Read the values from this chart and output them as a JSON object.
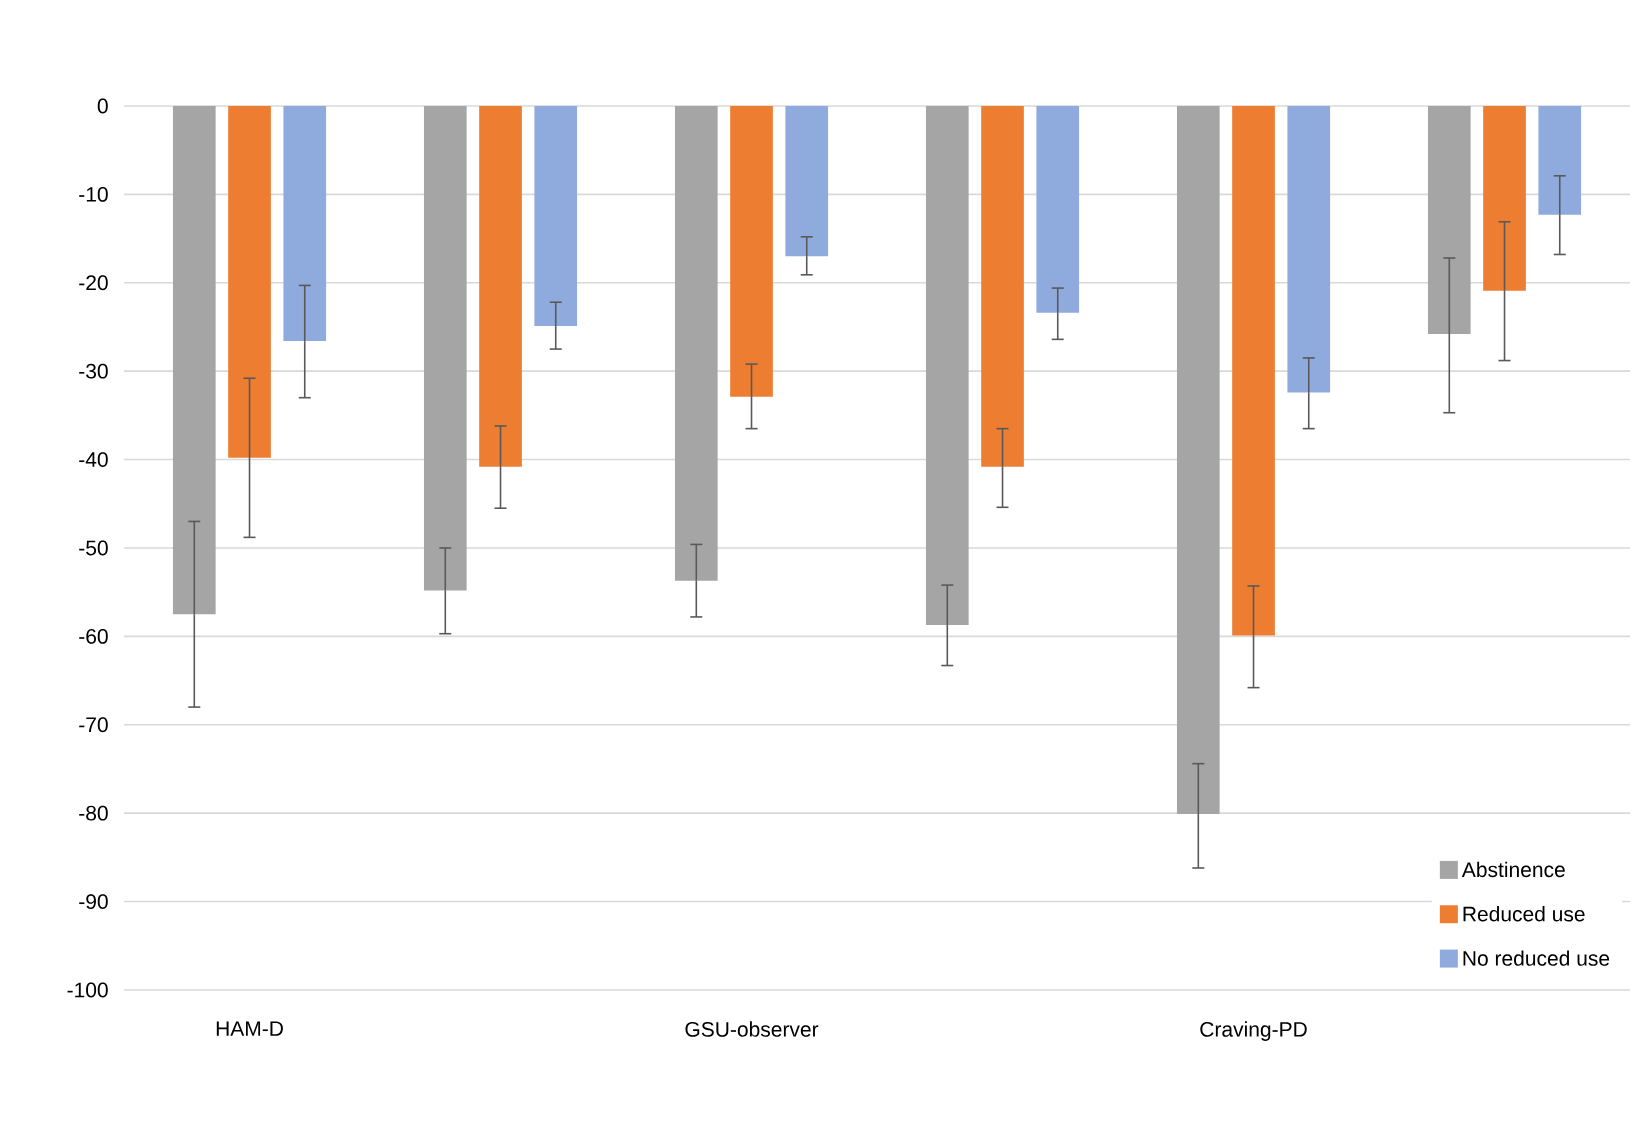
{
  "chart_data": {
    "type": "bar",
    "categories": [
      "HAM-D",
      null,
      "GSU-observer",
      null,
      "Craving-PD",
      null
    ],
    "series": [
      {
        "name": "Abstinence",
        "color": "#a5a5a5",
        "values": [
          -57.5,
          -54.8,
          -53.7,
          -58.7,
          -80.1,
          -25.8
        ],
        "errors": [
          [
            -68.0,
            -47.0
          ],
          [
            -59.7,
            -50.0
          ],
          [
            -57.8,
            -49.6
          ],
          [
            -63.3,
            -54.2
          ],
          [
            -86.2,
            -74.4
          ],
          [
            -34.7,
            -17.2
          ]
        ]
      },
      {
        "name": "Reduced use",
        "color": "#ed7d31",
        "values": [
          -39.8,
          -40.8,
          -32.9,
          -40.8,
          -59.9,
          -20.9
        ],
        "errors": [
          [
            -48.8,
            -30.8
          ],
          [
            -45.5,
            -36.2
          ],
          [
            -36.5,
            -29.2
          ],
          [
            -45.4,
            -36.5
          ],
          [
            -65.8,
            -54.3
          ],
          [
            -28.8,
            -13.1
          ]
        ]
      },
      {
        "name": "No reduced use",
        "color": "#8faadc",
        "values": [
          -26.6,
          -24.9,
          -17.0,
          -23.4,
          -32.4,
          -12.3
        ],
        "errors": [
          [
            -33.0,
            -20.3
          ],
          [
            -27.5,
            -22.2
          ],
          [
            -19.1,
            -14.8
          ],
          [
            -26.4,
            -20.6
          ],
          [
            -36.5,
            -28.5
          ],
          [
            -16.8,
            -7.9
          ]
        ]
      }
    ],
    "ylim": [
      -100,
      0
    ],
    "yticks": [
      -100,
      -90,
      -80,
      -70,
      -60,
      -50,
      -40,
      -30,
      -20,
      -10,
      0
    ],
    "grid": "y",
    "legend": "bottom right"
  }
}
